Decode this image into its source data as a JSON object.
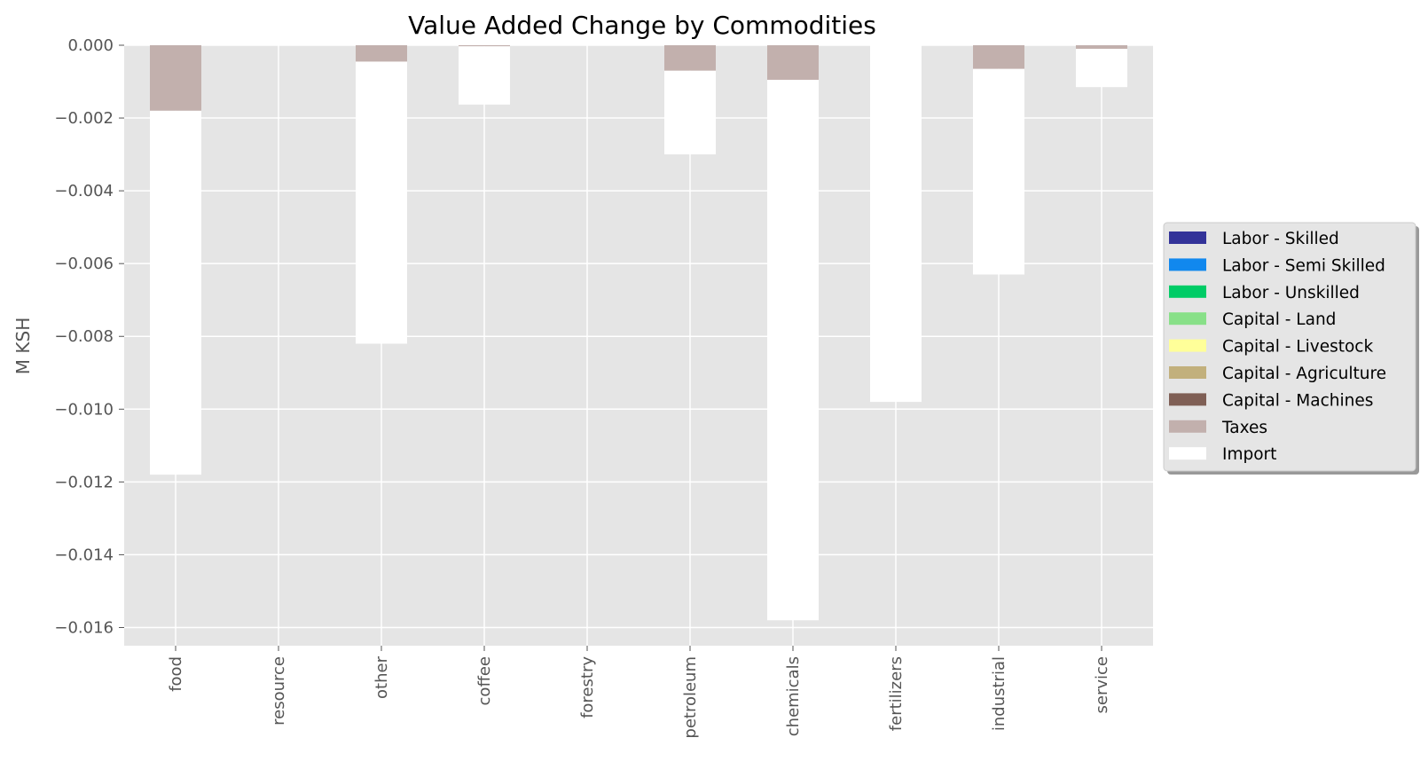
{
  "chart_data": {
    "type": "bar",
    "stacked": true,
    "title": "Value Added Change by Commodities",
    "xlabel": "",
    "ylabel": "M KSH",
    "categories": [
      "food",
      "resource",
      "other",
      "coffee",
      "forestry",
      "petroleum",
      "chemicals",
      "fertilizers",
      "industrial",
      "service"
    ],
    "ylim": [
      -0.0165,
      0.0
    ],
    "yticks": [
      0.0,
      -0.002,
      -0.004,
      -0.006,
      -0.008,
      -0.01,
      -0.012,
      -0.014,
      -0.016
    ],
    "ytick_labels": [
      "0.000",
      "−0.002",
      "−0.004",
      "−0.006",
      "−0.008",
      "−0.010",
      "−0.012",
      "−0.014",
      "−0.016"
    ],
    "grid": true,
    "legend_position": "center-right, outside the plot",
    "series": [
      {
        "name": "Labor - Skilled",
        "color": "#333399",
        "values": [
          0,
          0,
          0,
          0,
          0,
          0,
          0,
          0,
          0,
          0
        ]
      },
      {
        "name": "Labor - Semi Skilled",
        "color": "#1188ee",
        "values": [
          0,
          0,
          0,
          0,
          0,
          0,
          0,
          0,
          0,
          0
        ]
      },
      {
        "name": "Labor - Unskilled",
        "color": "#00cc66",
        "values": [
          0,
          0,
          0,
          0,
          0,
          0,
          0,
          0,
          0,
          0
        ]
      },
      {
        "name": "Capital - Land",
        "color": "#88e088",
        "values": [
          0,
          0,
          0,
          0,
          0,
          0,
          0,
          0,
          0,
          0
        ]
      },
      {
        "name": "Capital - Livestock",
        "color": "#ffff99",
        "values": [
          0,
          0,
          0,
          0,
          0,
          0,
          0,
          0,
          0,
          0
        ]
      },
      {
        "name": "Capital - Agriculture",
        "color": "#c2b07c",
        "values": [
          0,
          0,
          0,
          0,
          0,
          0,
          0,
          0,
          0,
          0
        ]
      },
      {
        "name": "Capital - Machines",
        "color": "#7f5f55",
        "values": [
          0,
          0,
          0,
          0,
          0,
          0,
          0,
          0,
          0,
          0
        ]
      },
      {
        "name": "Taxes",
        "color": "#c2b0ad",
        "values": [
          -0.0018,
          0,
          -0.00045,
          -3e-05,
          0,
          -0.0007,
          -0.00095,
          0,
          -0.00065,
          -0.0001
        ]
      },
      {
        "name": "Import",
        "color": "#ffffff",
        "values": [
          -0.01,
          0,
          -0.00775,
          -0.0016,
          0,
          -0.0023,
          -0.01485,
          -0.0098,
          -0.00565,
          -0.00105
        ]
      }
    ]
  }
}
